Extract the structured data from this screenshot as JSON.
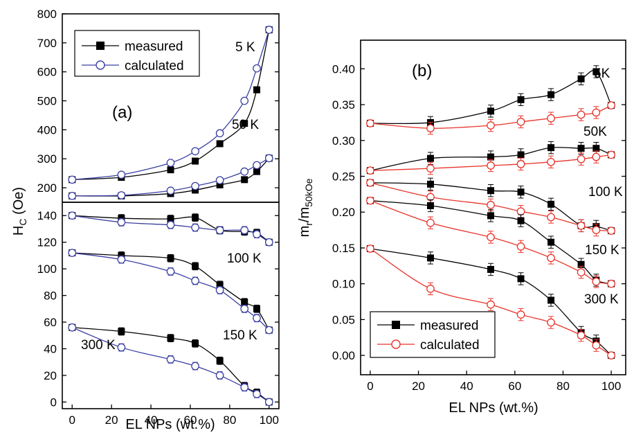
{
  "chart_data": [
    {
      "panel": "a-top",
      "type": "line",
      "panel_label": "(a)",
      "xlabel": "EL NPs (wt.%)",
      "ylabel": "H_C (Oe)",
      "ylabel_main": "H",
      "ylabel_sub": "C",
      "ylabel_tail": " (Oe)",
      "xlim": [
        -5,
        105
      ],
      "ylim": [
        150,
        800
      ],
      "yticks": [
        200,
        300,
        400,
        500,
        600,
        700,
        800
      ],
      "legend": {
        "placement": "top-left",
        "entries": [
          "measured",
          "calculated"
        ]
      },
      "series": [
        {
          "name": "measured",
          "temperature": "5 K",
          "x": [
            0,
            25,
            50,
            62.5,
            75,
            87.5,
            93.75,
            100
          ],
          "y": [
            228,
            236,
            262,
            292,
            352,
            422,
            538,
            745
          ]
        },
        {
          "name": "calculated",
          "temperature": "5 K",
          "x": [
            0,
            25,
            50,
            62.5,
            75,
            87.5,
            93.75,
            100
          ],
          "y": [
            228,
            245,
            286,
            326,
            388,
            500,
            612,
            745
          ]
        },
        {
          "name": "measured",
          "temperature": "50 K",
          "x": [
            0,
            25,
            50,
            62.5,
            75,
            87.5,
            93.75,
            100
          ],
          "y": [
            172,
            172,
            180,
            192,
            210,
            228,
            256,
            302
          ]
        },
        {
          "name": "calculated",
          "temperature": "50 K",
          "x": [
            0,
            25,
            50,
            62.5,
            75,
            87.5,
            93.75,
            100
          ],
          "y": [
            172,
            174,
            190,
            206,
            226,
            256,
            278,
            302
          ]
        }
      ],
      "annotations": [
        "5 K",
        "50 K"
      ]
    },
    {
      "panel": "a-bottom",
      "type": "line",
      "xlabel": "EL NPs (wt.%)",
      "xlim": [
        -5,
        105
      ],
      "ylim": [
        -5,
        150
      ],
      "xticks": [
        0,
        20,
        40,
        60,
        80,
        100
      ],
      "yticks": [
        0,
        20,
        40,
        60,
        80,
        100,
        120,
        140
      ],
      "series": [
        {
          "name": "measured",
          "temperature": "100 K",
          "x": [
            0,
            25,
            50,
            62.5,
            75,
            87.5,
            93.75,
            100
          ],
          "y": [
            140,
            138,
            137.5,
            138.5,
            129,
            128,
            127,
            120
          ]
        },
        {
          "name": "calculated",
          "temperature": "100 K",
          "x": [
            0,
            25,
            50,
            62.5,
            75,
            87.5,
            93.75,
            100
          ],
          "y": [
            140,
            135,
            133,
            131,
            129,
            129,
            126,
            120
          ]
        },
        {
          "name": "measured",
          "temperature": "150 K",
          "x": [
            0,
            25,
            50,
            62.5,
            75,
            87.5,
            93.75,
            100
          ],
          "y": [
            112,
            110,
            108,
            102,
            88,
            75,
            70,
            54
          ]
        },
        {
          "name": "calculated",
          "temperature": "150 K",
          "x": [
            0,
            25,
            50,
            62.5,
            75,
            87.5,
            93.75,
            100
          ],
          "y": [
            112,
            107,
            98,
            91,
            84,
            70,
            63,
            54
          ]
        },
        {
          "name": "measured",
          "temperature": "300 K",
          "x": [
            0,
            25,
            50,
            62.5,
            75,
            87.5,
            93.75,
            100
          ],
          "y": [
            56,
            53,
            48,
            44,
            31,
            12,
            7,
            0
          ]
        },
        {
          "name": "calculated",
          "temperature": "300 K",
          "x": [
            0,
            25,
            50,
            62.5,
            75,
            87.5,
            93.75,
            100
          ],
          "y": [
            56,
            41,
            32,
            27,
            20,
            11,
            6,
            0
          ]
        }
      ],
      "annotations": [
        "100 K",
        "150 K",
        "300 K"
      ]
    },
    {
      "panel": "b",
      "type": "line",
      "panel_label": "(b)",
      "xlabel": "EL NPs (wt.%)",
      "ylabel": "m_r/m_50kOe",
      "ylabel_main": "m",
      "ylabel_sub": "r",
      "ylabel_mid": "/m",
      "ylabel_sub2": "50kOe",
      "xlim": [
        -4,
        106
      ],
      "ylim": [
        -0.027,
        0.44
      ],
      "xticks": [
        0,
        20,
        40,
        60,
        80,
        100
      ],
      "yticks": [
        0.0,
        0.05,
        0.1,
        0.15,
        0.2,
        0.25,
        0.3,
        0.35,
        0.4
      ],
      "ytick_labels": [
        "0.00",
        "0.05",
        "0.10",
        "0.15",
        "0.20",
        "0.25",
        "0.30",
        "0.35",
        "0.40"
      ],
      "legend": {
        "placement": "bottom-left",
        "entries": [
          "measured",
          "calculated"
        ]
      },
      "series": [
        {
          "name": "measured",
          "temperature": "5K",
          "x": [
            0,
            25,
            50,
            62.5,
            75,
            87.5,
            93.75,
            100
          ],
          "y": [
            0.324,
            0.325,
            0.341,
            0.357,
            0.364,
            0.386,
            0.396,
            0.349
          ]
        },
        {
          "name": "calculated",
          "temperature": "5K",
          "x": [
            0,
            25,
            50,
            62.5,
            75,
            87.5,
            93.75,
            100
          ],
          "y": [
            0.324,
            0.317,
            0.321,
            0.326,
            0.331,
            0.336,
            0.339,
            0.349
          ]
        },
        {
          "name": "measured",
          "temperature": "50K",
          "x": [
            0,
            25,
            50,
            62.5,
            75,
            87.5,
            93.75,
            100
          ],
          "y": [
            0.258,
            0.275,
            0.277,
            0.28,
            0.29,
            0.289,
            0.289,
            0.28
          ]
        },
        {
          "name": "calculated",
          "temperature": "50K",
          "x": [
            0,
            25,
            50,
            62.5,
            75,
            87.5,
            93.75,
            100
          ],
          "y": [
            0.258,
            0.261,
            0.265,
            0.267,
            0.27,
            0.274,
            0.277,
            0.28
          ]
        },
        {
          "name": "measured",
          "temperature": "100 K",
          "x": [
            0,
            25,
            50,
            62.5,
            75,
            87.5,
            93.75,
            100
          ],
          "y": [
            0.241,
            0.239,
            0.23,
            0.228,
            0.211,
            0.181,
            0.18,
            0.174
          ]
        },
        {
          "name": "calculated",
          "temperature": "100 K",
          "x": [
            0,
            25,
            50,
            62.5,
            75,
            87.5,
            93.75,
            100
          ],
          "y": [
            0.241,
            0.221,
            0.21,
            0.201,
            0.193,
            0.181,
            0.175,
            0.174
          ]
        },
        {
          "name": "measured",
          "temperature": "150 K",
          "x": [
            0,
            25,
            50,
            62.5,
            75,
            87.5,
            93.75,
            100
          ],
          "y": [
            0.216,
            0.209,
            0.195,
            0.188,
            0.158,
            0.127,
            0.105,
            0.1
          ]
        },
        {
          "name": "calculated",
          "temperature": "150 K",
          "x": [
            0,
            25,
            50,
            62.5,
            75,
            87.5,
            93.75,
            100
          ],
          "y": [
            0.216,
            0.185,
            0.165,
            0.152,
            0.136,
            0.116,
            0.103,
            0.1
          ]
        },
        {
          "name": "measured",
          "temperature": "300 K",
          "x": [
            0,
            25,
            50,
            62.5,
            75,
            87.5,
            93.75,
            100
          ],
          "y": [
            0.149,
            0.136,
            0.12,
            0.107,
            0.077,
            0.032,
            0.02,
            0.0
          ]
        },
        {
          "name": "calculated",
          "temperature": "300 K",
          "x": [
            0,
            25,
            50,
            62.5,
            75,
            87.5,
            93.75,
            100
          ],
          "y": [
            0.149,
            0.093,
            0.071,
            0.057,
            0.046,
            0.028,
            0.014,
            0.0
          ]
        }
      ],
      "annotations": [
        "5K",
        "50K",
        "100 K",
        "150 K",
        "300 K"
      ]
    }
  ],
  "colors": {
    "measured_a": "#000000",
    "calculated_a": "#3a3fa0",
    "measured_b": "#000000",
    "calculated_b": "#e8322a"
  }
}
